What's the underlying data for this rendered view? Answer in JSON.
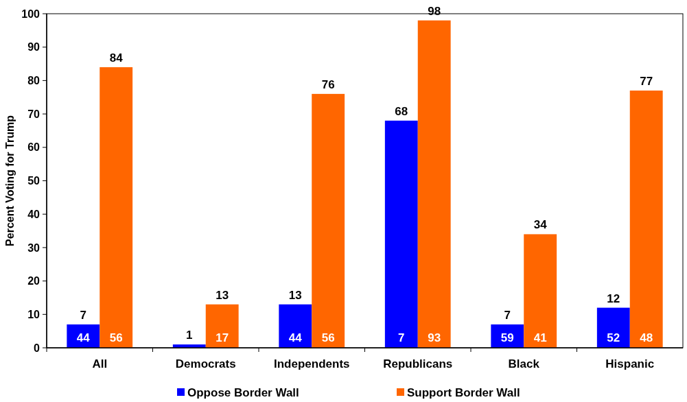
{
  "chart_data": {
    "type": "bar",
    "ylabel": "Percent Voting for Trump",
    "categories": [
      "All",
      "Democrats",
      "Independents",
      "Republicans",
      "Black",
      "Hispanic"
    ],
    "series": [
      {
        "name": "Oppose Border Wall",
        "color": "#0000ff",
        "values": [
          7,
          1,
          13,
          68,
          7,
          12
        ]
      },
      {
        "name": "Support Border Wall",
        "color": "#ff6600",
        "values": [
          84,
          13,
          76,
          98,
          34,
          77
        ]
      }
    ],
    "annotations": [
      {
        "text": "44",
        "x": "All",
        "y": 3
      },
      {
        "text": "56",
        "x": "All",
        "y": 3
      },
      {
        "text": "17",
        "x": "Democrats",
        "y": 3
      },
      {
        "text": "44",
        "x": "Independents",
        "y": 3
      },
      {
        "text": "56",
        "x": "Independents",
        "y": 3
      },
      {
        "text": "7",
        "x": "Republicans",
        "y": 3
      },
      {
        "text": "93",
        "x": "Republicans",
        "y": 3
      },
      {
        "text": "59",
        "x": "Black",
        "y": 3
      },
      {
        "text": "41",
        "x": "Black",
        "y": 3
      },
      {
        "text": "52",
        "x": "Hispanic",
        "y": 3
      },
      {
        "text": "48",
        "x": "Hispanic",
        "y": 3
      }
    ],
    "ylim": [
      0,
      100
    ],
    "yticks": [
      0,
      10,
      20,
      30,
      40,
      50,
      60,
      70,
      80,
      90,
      100
    ],
    "data_labels": true,
    "legend": "bottom",
    "grid": false
  }
}
